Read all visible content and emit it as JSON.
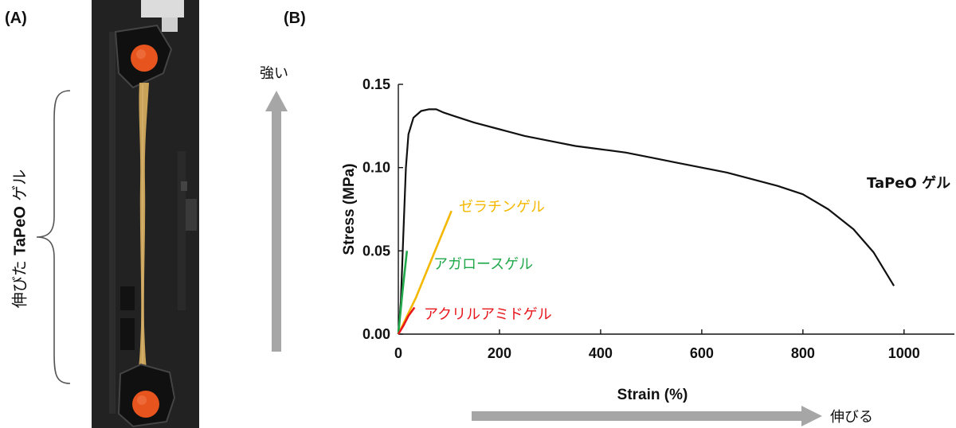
{
  "panel_a": {
    "label": "(A)",
    "side_label_jp1": "伸びた",
    "side_label_bold": "TaPeO",
    "side_label_jp2": "ゲル"
  },
  "panel_b": {
    "label": "(B)",
    "up_arrow_label": "強い",
    "right_arrow_label": "伸びる"
  },
  "chart_data": {
    "type": "line",
    "title": "",
    "xlabel": "Strain (%)",
    "ylabel": "Stress (MPa)",
    "xlim": [
      0,
      1100
    ],
    "ylim": [
      0,
      0.15
    ],
    "x_ticks": [
      "0",
      "200",
      "400",
      "600",
      "800",
      "1000"
    ],
    "y_ticks": [
      "0.00",
      "0.05",
      "0.10",
      "0.15"
    ],
    "x_tick_values": [
      0,
      200,
      400,
      600,
      800,
      1000
    ],
    "y_tick_values": [
      0,
      0.05,
      0.1,
      0.15
    ],
    "grid": false,
    "legend": "none",
    "series": [
      {
        "name": "TaPeO ゲル",
        "color": "#111111",
        "points": [
          [
            0,
            0
          ],
          [
            5,
            0.02
          ],
          [
            10,
            0.06
          ],
          [
            15,
            0.1
          ],
          [
            20,
            0.12
          ],
          [
            30,
            0.13
          ],
          [
            45,
            0.134
          ],
          [
            60,
            0.135
          ],
          [
            75,
            0.135
          ],
          [
            90,
            0.133
          ],
          [
            110,
            0.131
          ],
          [
            150,
            0.127
          ],
          [
            200,
            0.123
          ],
          [
            250,
            0.119
          ],
          [
            300,
            0.116
          ],
          [
            350,
            0.113
          ],
          [
            400,
            0.111
          ],
          [
            450,
            0.109
          ],
          [
            500,
            0.106
          ],
          [
            550,
            0.103
          ],
          [
            600,
            0.1
          ],
          [
            650,
            0.097
          ],
          [
            700,
            0.093
          ],
          [
            750,
            0.089
          ],
          [
            800,
            0.084
          ],
          [
            850,
            0.075
          ],
          [
            900,
            0.063
          ],
          [
            940,
            0.049
          ],
          [
            980,
            0.029
          ]
        ]
      },
      {
        "name": "ゼラチンゲル",
        "color": "#f5b800",
        "points": [
          [
            0,
            0
          ],
          [
            35,
            0.022
          ],
          [
            70,
            0.048
          ],
          [
            105,
            0.074
          ]
        ]
      },
      {
        "name": "アガロースゲル",
        "color": "#21a84a",
        "points": [
          [
            0,
            0
          ],
          [
            8,
            0.025
          ],
          [
            17,
            0.05
          ]
        ]
      },
      {
        "name": "アクリルアミドゲル",
        "color": "#e8171d",
        "points": [
          [
            0,
            0
          ],
          [
            10,
            0.005
          ],
          [
            20,
            0.011
          ],
          [
            32,
            0.016
          ]
        ]
      }
    ]
  }
}
